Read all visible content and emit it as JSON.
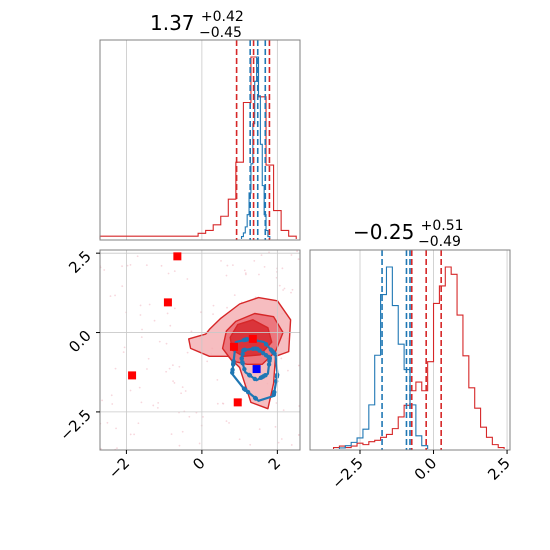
{
  "chart_data": [
    {
      "panel": "marginal-1",
      "type": "histogram",
      "title": {
        "value": "1.37",
        "sup": "+0.42",
        "sub": "−0.45"
      },
      "xlim": [
        -2.7,
        2.6
      ],
      "x_ticks": [
        -2,
        0,
        2
      ],
      "x_tick_labels": [],
      "grid": true,
      "series": [
        {
          "color": "#d62728",
          "bin_edges": [
            -2.7,
            -2.5,
            -2.3,
            -2.1,
            -1.9,
            -1.7,
            -1.5,
            -1.3,
            -1.1,
            -0.9,
            -0.7,
            -0.5,
            -0.3,
            -0.1,
            0.1,
            0.3,
            0.5,
            0.7,
            0.9,
            1.1,
            1.3,
            1.5,
            1.7,
            1.9,
            2.1,
            2.3,
            2.5
          ],
          "counts": [
            1,
            1,
            1,
            1,
            1,
            1,
            1,
            1,
            1,
            1,
            1,
            1,
            1,
            2,
            3,
            5,
            8,
            14,
            27,
            48,
            64,
            50,
            26,
            10,
            3,
            1
          ],
          "quantile_lines": [
            0.92,
            1.37,
            1.79
          ]
        },
        {
          "color": "#1f77b4",
          "bin_edges": [
            1.05,
            1.1,
            1.15,
            1.2,
            1.25,
            1.3,
            1.35,
            1.4,
            1.45,
            1.5,
            1.55,
            1.6,
            1.65,
            1.7,
            1.75,
            1.8
          ],
          "counts": [
            2,
            5,
            10,
            20,
            38,
            62,
            95,
            130,
            150,
            118,
            78,
            44,
            20,
            7,
            2
          ],
          "quantile_lines": [
            1.28,
            1.48,
            1.68
          ]
        }
      ]
    },
    {
      "panel": "marginal-2",
      "type": "histogram",
      "title": {
        "value": "−0.25",
        "sup": "+0.51",
        "sub": "−0.49"
      },
      "xlim": [
        -4.2,
        2.6
      ],
      "x_ticks": [
        -2.5,
        0.0,
        2.5
      ],
      "x_tick_labels": [
        "−2.5",
        "0.0",
        "2.5"
      ],
      "grid": true,
      "series": [
        {
          "color": "#d62728",
          "bin_edges": [
            -3.4,
            -3.2,
            -3.0,
            -2.8,
            -2.6,
            -2.4,
            -2.2,
            -2.0,
            -1.8,
            -1.6,
            -1.4,
            -1.2,
            -1.0,
            -0.8,
            -0.6,
            -0.4,
            -0.2,
            0.0,
            0.2,
            0.4,
            0.6,
            0.8,
            1.0,
            1.2,
            1.4,
            1.6,
            1.8,
            2.0,
            2.2,
            2.4
          ],
          "counts": [
            1,
            2,
            1,
            2,
            4,
            3,
            5,
            6,
            8,
            10,
            14,
            22,
            30,
            40,
            46,
            40,
            60,
            100,
            112,
            125,
            120,
            92,
            64,
            42,
            28,
            15,
            8,
            3,
            1
          ],
          "quantile_lines": [
            -0.74,
            -0.25,
            0.26
          ]
        },
        {
          "color": "#1f77b4",
          "bin_edges": [
            -3.2,
            -3.0,
            -2.8,
            -2.6,
            -2.4,
            -2.2,
            -2.0,
            -1.8,
            -1.6,
            -1.4,
            -1.2,
            -1.0,
            -0.8,
            -0.6,
            -0.4,
            -0.2
          ],
          "counts": [
            1,
            3,
            6,
            10,
            18,
            40,
            85,
            140,
            165,
            130,
            95,
            72,
            40,
            12,
            3
          ],
          "quantile_lines": [
            -1.75,
            -0.92,
            -0.8
          ]
        }
      ]
    },
    {
      "panel": "joint",
      "type": "scatter",
      "xlim": [
        -2.7,
        2.6
      ],
      "ylim": [
        -3.7,
        2.6
      ],
      "x_ticks": [
        -2,
        0,
        2
      ],
      "x_tick_labels": [
        "−2",
        "0",
        "2"
      ],
      "y_ticks": [
        -2.5,
        0.0,
        2.5
      ],
      "y_tick_labels": [
        "−2.5",
        "0.0",
        "2.5"
      ],
      "grid": true,
      "red_contour_levels": [
        [
          [
            0.2,
            0.1
          ],
          [
            0.5,
            0.45
          ],
          [
            1.0,
            0.9
          ],
          [
            1.5,
            1.1
          ],
          [
            2.0,
            1.0
          ],
          [
            2.35,
            0.4
          ],
          [
            2.3,
            -0.6
          ],
          [
            1.95,
            -0.75
          ],
          [
            1.9,
            -1.6
          ],
          [
            1.75,
            -2.4
          ],
          [
            1.3,
            -2.2
          ],
          [
            1.0,
            -1.1
          ],
          [
            0.7,
            -0.75
          ],
          [
            0.2,
            -0.75
          ],
          [
            -0.3,
            -0.5
          ],
          [
            -0.35,
            -0.2
          ],
          [
            0.1,
            -0.05
          ]
        ],
        [
          [
            0.65,
            0.05
          ],
          [
            0.9,
            0.35
          ],
          [
            1.4,
            0.6
          ],
          [
            1.9,
            0.5
          ],
          [
            2.15,
            0.0
          ],
          [
            1.95,
            -0.6
          ],
          [
            1.6,
            -1.0
          ],
          [
            1.2,
            -1.0
          ],
          [
            0.8,
            -0.9
          ],
          [
            0.55,
            -0.5
          ]
        ],
        [
          [
            0.75,
            -0.15
          ],
          [
            0.95,
            0.25
          ],
          [
            1.35,
            0.4
          ],
          [
            1.75,
            0.15
          ],
          [
            1.85,
            -0.3
          ],
          [
            1.55,
            -0.7
          ],
          [
            1.1,
            -0.75
          ],
          [
            0.8,
            -0.55
          ]
        ]
      ],
      "blue_contour_levels": [
        [
          [
            0.9,
            -0.3
          ],
          [
            1.25,
            -0.2
          ],
          [
            1.65,
            -0.3
          ],
          [
            1.95,
            -0.7
          ],
          [
            2.0,
            -1.3
          ],
          [
            1.9,
            -2.0
          ],
          [
            1.5,
            -2.15
          ],
          [
            1.1,
            -1.75
          ],
          [
            0.8,
            -1.3
          ],
          [
            0.85,
            -0.8
          ]
        ],
        [
          [
            1.1,
            -0.55
          ],
          [
            1.45,
            -0.5
          ],
          [
            1.8,
            -0.8
          ],
          [
            1.75,
            -1.3
          ],
          [
            1.45,
            -1.5
          ],
          [
            1.15,
            -1.25
          ],
          [
            1.05,
            -0.85
          ]
        ]
      ],
      "red_squares": [
        [
          -0.65,
          2.4
        ],
        [
          -0.9,
          0.95
        ],
        [
          -1.85,
          -1.35
        ],
        [
          1.35,
          -0.2
        ],
        [
          0.85,
          -0.45
        ],
        [
          0.95,
          -2.2
        ]
      ],
      "blue_squares": [
        [
          1.45,
          -1.15
        ]
      ],
      "colors": {
        "red": "#d62728",
        "red_fill": "#f1a3a8",
        "blue": "#1f77b4",
        "square_red": "#ff0000",
        "square_blue": "#0000ff",
        "frame": "#808080",
        "grid": "#c8c8c8"
      }
    }
  ]
}
